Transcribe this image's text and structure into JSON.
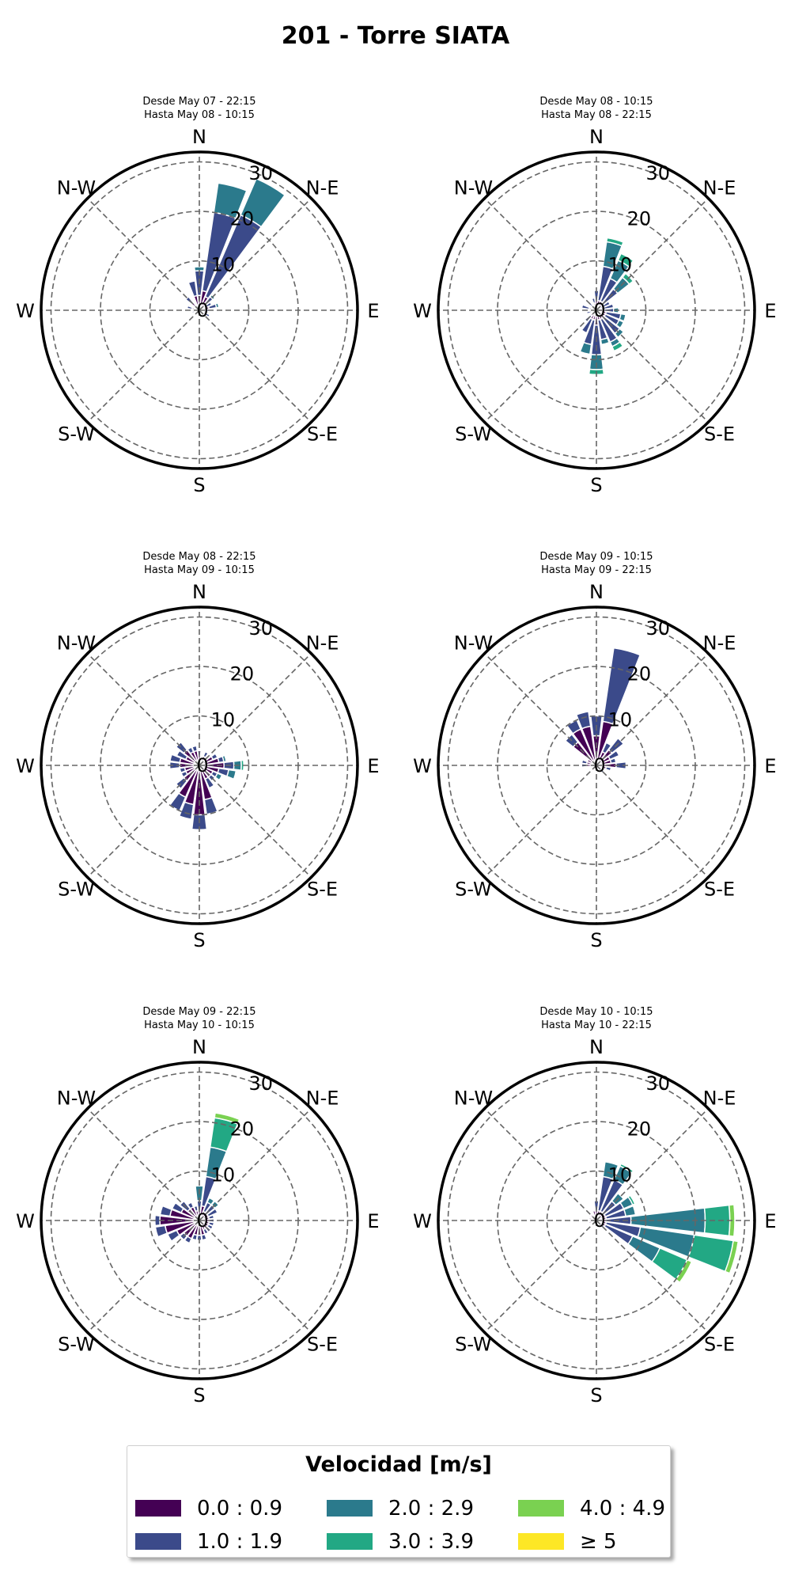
{
  "title": "201 - Torre SIATA",
  "chart_data": {
    "type": "windrose",
    "directions": [
      "N",
      "N-E",
      "E",
      "S-E",
      "S",
      "S-W",
      "W",
      "N-W"
    ],
    "radial_ticks": [
      "0",
      "10",
      "20",
      "30"
    ],
    "rmax": 32,
    "legend": {
      "title": "Velocidad [m/s]",
      "bins": [
        {
          "label": "0.0 : 0.9",
          "color": "#440154"
        },
        {
          "label": "1.0 : 1.9",
          "color": "#3b4a8a"
        },
        {
          "label": "2.0 : 2.9",
          "color": "#2b7a8c"
        },
        {
          "label": "3.0 : 3.9",
          "color": "#22a884"
        },
        {
          "label": "4.0 : 4.9",
          "color": "#7ad151"
        },
        {
          "label": "≥ 5",
          "color": "#fde725"
        }
      ]
    },
    "panels": [
      {
        "desde": "Desde May 07 - 22:15",
        "hasta": "Hasta May 08 - 10:15",
        "sectors": [
          {
            "angle": 0,
            "stack": [
              3,
              5,
              0.8
            ]
          },
          {
            "angle": 15,
            "stack": [
              4,
              16,
              6
            ]
          },
          {
            "angle": 30,
            "stack": [
              3,
              18,
              8
            ]
          },
          {
            "angle": 45,
            "stack": [
              1.5,
              2,
              0.5
            ]
          },
          {
            "angle": 60,
            "stack": [
              1.2,
              1.5
            ]
          },
          {
            "angle": 75,
            "stack": [
              2,
              1.5,
              0.5
            ]
          },
          {
            "angle": 90,
            "stack": [
              1,
              1
            ]
          },
          {
            "angle": 105,
            "stack": [
              1,
              0.5
            ]
          },
          {
            "angle": 120,
            "stack": [
              1.5,
              0.8
            ]
          },
          {
            "angle": 150,
            "stack": [
              1
            ]
          },
          {
            "angle": 180,
            "stack": [
              1
            ]
          },
          {
            "angle": 210,
            "stack": [
              1
            ]
          },
          {
            "angle": 255,
            "stack": [
              1,
              0.5
            ]
          },
          {
            "angle": 285,
            "stack": [
              1.5,
              1
            ]
          },
          {
            "angle": 315,
            "stack": [
              2,
              1.5
            ]
          },
          {
            "angle": 345,
            "stack": [
              3,
              3
            ]
          }
        ]
      },
      {
        "desde": "Desde May 08 - 10:15",
        "hasta": "Hasta May 08 - 22:15",
        "sectors": [
          {
            "angle": 0,
            "stack": [
              2,
              2
            ]
          },
          {
            "angle": 15,
            "stack": [
              2,
              7,
              5,
              0.8
            ]
          },
          {
            "angle": 30,
            "stack": [
              2,
              5,
              4,
              1.5
            ]
          },
          {
            "angle": 45,
            "stack": [
              1.5,
              4,
              3,
              1
            ]
          },
          {
            "angle": 60,
            "stack": [
              1,
              2
            ]
          },
          {
            "angle": 75,
            "stack": [
              1.5,
              2
            ]
          },
          {
            "angle": 90,
            "stack": [
              1.5,
              2,
              1
            ]
          },
          {
            "angle": 105,
            "stack": [
              2,
              3,
              1
            ]
          },
          {
            "angle": 120,
            "stack": [
              2,
              3,
              1
            ]
          },
          {
            "angle": 135,
            "stack": [
              2,
              4,
              1
            ]
          },
          {
            "angle": 150,
            "stack": [
              2,
              5,
              1,
              1
            ]
          },
          {
            "angle": 165,
            "stack": [
              2,
              4,
              1
            ]
          },
          {
            "angle": 180,
            "stack": [
              3,
              6,
              3,
              1
            ]
          },
          {
            "angle": 195,
            "stack": [
              2,
              5,
              2
            ]
          },
          {
            "angle": 210,
            "stack": [
              2,
              3
            ]
          },
          {
            "angle": 225,
            "stack": [
              1.5,
              1.5
            ]
          },
          {
            "angle": 255,
            "stack": [
              1,
              1
            ]
          },
          {
            "angle": 285,
            "stack": [
              1.5,
              1.5
            ]
          },
          {
            "angle": 315,
            "stack": [
              1,
              1
            ]
          },
          {
            "angle": 345,
            "stack": [
              1.5,
              1
            ]
          }
        ]
      },
      {
        "desde": "Desde May 08 - 22:15",
        "hasta": "Hasta May 09 - 10:15",
        "sectors": [
          {
            "angle": 0,
            "stack": [
              2,
              1
            ]
          },
          {
            "angle": 30,
            "stack": [
              2,
              1
            ]
          },
          {
            "angle": 60,
            "stack": [
              3,
              1
            ]
          },
          {
            "angle": 75,
            "stack": [
              4,
              1,
              0.5
            ]
          },
          {
            "angle": 90,
            "stack": [
              5,
              2,
              1.5,
              0.5
            ]
          },
          {
            "angle": 105,
            "stack": [
              4,
              2,
              1.5
            ]
          },
          {
            "angle": 120,
            "stack": [
              3,
              1,
              1
            ]
          },
          {
            "angle": 135,
            "stack": [
              3,
              1
            ]
          },
          {
            "angle": 150,
            "stack": [
              3,
              2
            ]
          },
          {
            "angle": 165,
            "stack": [
              7,
              3
            ]
          },
          {
            "angle": 180,
            "stack": [
              10,
              3
            ]
          },
          {
            "angle": 195,
            "stack": [
              8,
              3
            ]
          },
          {
            "angle": 210,
            "stack": [
              7,
              3
            ]
          },
          {
            "angle": 225,
            "stack": [
              4,
              2
            ]
          },
          {
            "angle": 240,
            "stack": [
              3,
              1
            ]
          },
          {
            "angle": 255,
            "stack": [
              3,
              1
            ]
          },
          {
            "angle": 270,
            "stack": [
              4,
              2
            ]
          },
          {
            "angle": 285,
            "stack": [
              4,
              2
            ]
          },
          {
            "angle": 300,
            "stack": [
              3,
              2
            ]
          },
          {
            "angle": 315,
            "stack": [
              4,
              2
            ]
          },
          {
            "angle": 330,
            "stack": [
              3,
              1
            ]
          },
          {
            "angle": 345,
            "stack": [
              3,
              1
            ]
          }
        ]
      },
      {
        "desde": "Desde May 09 - 10:15",
        "hasta": "Hasta May 09 - 22:15",
        "sectors": [
          {
            "angle": 0,
            "stack": [
              6,
              4
            ]
          },
          {
            "angle": 15,
            "stack": [
              9,
              15
            ]
          },
          {
            "angle": 30,
            "stack": [
              3,
              2
            ]
          },
          {
            "angle": 45,
            "stack": [
              4,
              3
            ]
          },
          {
            "angle": 60,
            "stack": [
              3,
              2
            ]
          },
          {
            "angle": 75,
            "stack": [
              3,
              1
            ]
          },
          {
            "angle": 90,
            "stack": [
              4,
              2
            ]
          },
          {
            "angle": 105,
            "stack": [
              2,
              1
            ]
          },
          {
            "angle": 135,
            "stack": [
              1,
              1
            ]
          },
          {
            "angle": 165,
            "stack": [
              1
            ]
          },
          {
            "angle": 195,
            "stack": [
              1
            ]
          },
          {
            "angle": 225,
            "stack": [
              1
            ]
          },
          {
            "angle": 255,
            "stack": [
              1
            ]
          },
          {
            "angle": 270,
            "stack": [
              2,
              1
            ]
          },
          {
            "angle": 285,
            "stack": [
              2,
              1
            ]
          },
          {
            "angle": 300,
            "stack": [
              2
            ]
          },
          {
            "angle": 315,
            "stack": [
              6,
              2
            ]
          },
          {
            "angle": 330,
            "stack": [
              8,
              2
            ]
          },
          {
            "angle": 345,
            "stack": [
              8,
              3
            ]
          }
        ]
      },
      {
        "desde": "Desde May 09 - 22:15",
        "hasta": "Hasta May 10 - 10:15",
        "sectors": [
          {
            "angle": 0,
            "stack": [
              2,
              2,
              3
            ]
          },
          {
            "angle": 15,
            "stack": [
              3,
              6,
              6,
              6,
              1
            ]
          },
          {
            "angle": 30,
            "stack": [
              2,
              2,
              1
            ]
          },
          {
            "angle": 45,
            "stack": [
              2,
              2,
              1
            ]
          },
          {
            "angle": 60,
            "stack": [
              2,
              2
            ]
          },
          {
            "angle": 75,
            "stack": [
              2,
              1
            ]
          },
          {
            "angle": 90,
            "stack": [
              2,
              1
            ]
          },
          {
            "angle": 105,
            "stack": [
              2,
              1
            ]
          },
          {
            "angle": 120,
            "stack": [
              2,
              1
            ]
          },
          {
            "angle": 135,
            "stack": [
              2,
              1
            ]
          },
          {
            "angle": 150,
            "stack": [
              2,
              1
            ]
          },
          {
            "angle": 165,
            "stack": [
              3,
              1
            ]
          },
          {
            "angle": 180,
            "stack": [
              3,
              1
            ]
          },
          {
            "angle": 195,
            "stack": [
              3,
              1
            ]
          },
          {
            "angle": 210,
            "stack": [
              4,
              1
            ]
          },
          {
            "angle": 225,
            "stack": [
              4,
              1
            ]
          },
          {
            "angle": 240,
            "stack": [
              5,
              2
            ]
          },
          {
            "angle": 255,
            "stack": [
              7,
              2
            ]
          },
          {
            "angle": 270,
            "stack": [
              8,
              1
            ]
          },
          {
            "angle": 285,
            "stack": [
              6,
              2
            ]
          },
          {
            "angle": 300,
            "stack": [
              4,
              2
            ]
          },
          {
            "angle": 315,
            "stack": [
              3,
              2
            ]
          },
          {
            "angle": 330,
            "stack": [
              3,
              1
            ]
          },
          {
            "angle": 345,
            "stack": [
              2,
              1
            ]
          }
        ]
      },
      {
        "desde": "Desde May 10 - 10:15",
        "hasta": "Hasta May 10 - 22:15",
        "sectors": [
          {
            "angle": 0,
            "stack": [
              2,
              2
            ]
          },
          {
            "angle": 15,
            "stack": [
              2,
              7,
              3
            ]
          },
          {
            "angle": 30,
            "stack": [
              2,
              7,
              3,
              0.5
            ]
          },
          {
            "angle": 45,
            "stack": [
              2,
              3,
              2
            ]
          },
          {
            "angle": 60,
            "stack": [
              2,
              4,
              2,
              0.5
            ]
          },
          {
            "angle": 75,
            "stack": [
              2,
              4,
              2
            ]
          },
          {
            "angle": 90,
            "stack": [
              2,
              5,
              15,
              5,
              1
            ]
          },
          {
            "angle": 105,
            "stack": [
              2,
              7,
              11,
              8,
              1
            ]
          },
          {
            "angle": 120,
            "stack": [
              2,
              6,
              6,
              6,
              1
            ]
          },
          {
            "angle": 135,
            "stack": [
              1,
              1
            ]
          },
          {
            "angle": 165,
            "stack": [
              1
            ]
          },
          {
            "angle": 195,
            "stack": [
              1
            ]
          },
          {
            "angle": 225,
            "stack": [
              1
            ]
          },
          {
            "angle": 255,
            "stack": [
              1.5
            ]
          },
          {
            "angle": 285,
            "stack": [
              1.5
            ]
          },
          {
            "angle": 315,
            "stack": [
              1.5
            ]
          },
          {
            "angle": 345,
            "stack": [
              2
            ]
          }
        ]
      }
    ]
  }
}
